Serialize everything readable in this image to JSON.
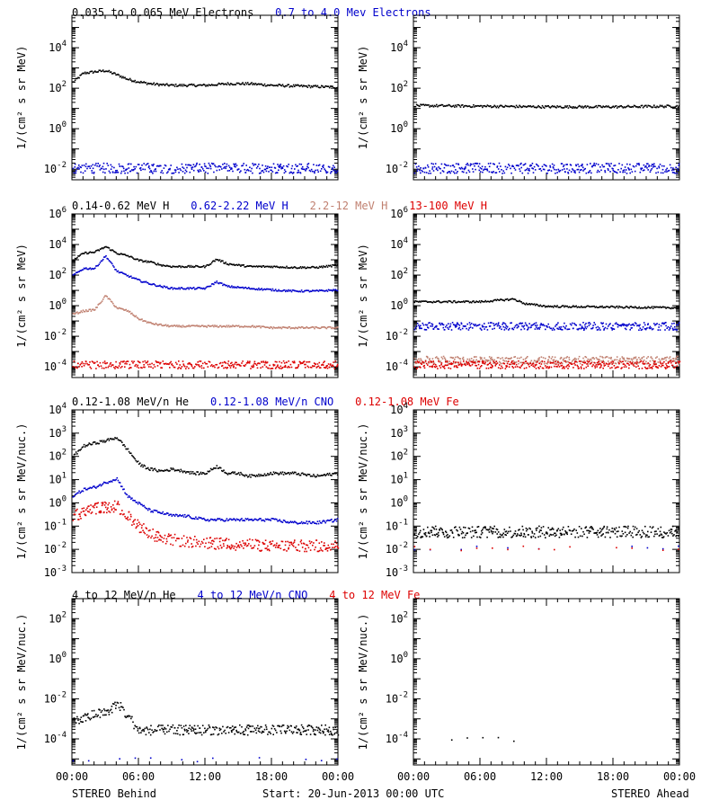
{
  "figure": {
    "footer_left": "STEREO Behind",
    "footer_center": "Start: 20-Jun-2013 00:00 UTC",
    "footer_right": "STEREO Ahead",
    "x_ticks": [
      "00:00",
      "06:00",
      "12:00",
      "18:00",
      "00:00"
    ]
  },
  "chart_data": [
    {
      "type": "scatter",
      "panel": "electrons",
      "title_entries": [
        {
          "text": "0.035 to 0.065 MeV Electrons",
          "color": "#000000"
        },
        {
          "text": "0.7 to 4.0 Mev Electrons",
          "color": "#0000cc"
        }
      ],
      "ylabel": "1/(cm² s sr MeV)",
      "y_scale": "log",
      "ylim": [
        0.003,
        400000
      ],
      "y_ticks": [
        {
          "base": "10",
          "exp": "-2",
          "value": 0.01
        },
        {
          "base": "10",
          "exp": "0",
          "value": 1
        },
        {
          "base": "10",
          "exp": "2",
          "value": 100
        },
        {
          "base": "10",
          "exp": "4",
          "value": 10000
        },
        {
          "base": "10",
          "exp": "6",
          "value": 1000000
        }
      ],
      "xlim_hours": [
        0,
        24
      ],
      "behind": [
        {
          "name": "0.035 to 0.065 MeV Electrons",
          "color": "#000000",
          "style": "line",
          "x": [
            0,
            1,
            2,
            3,
            4,
            5,
            6,
            7,
            8,
            9,
            10,
            12,
            14,
            16,
            18,
            20,
            22,
            24
          ],
          "y": [
            200,
            600,
            700,
            800,
            500,
            300,
            220,
            180,
            160,
            150,
            150,
            150,
            180,
            180,
            150,
            140,
            130,
            120
          ]
        },
        {
          "name": "0.7 to 4.0 Mev Electrons",
          "color": "#0000cc",
          "style": "noisy",
          "x": [
            0,
            24
          ],
          "y": [
            0.012,
            0.012
          ]
        }
      ],
      "ahead": [
        {
          "name": "0.035 to 0.065 MeV Electrons",
          "color": "#000000",
          "style": "line",
          "x": [
            0,
            6,
            12,
            18,
            24
          ],
          "y": [
            15,
            14,
            13,
            13,
            14
          ]
        },
        {
          "name": "0.7 to 4.0 Mev Electrons",
          "color": "#0000cc",
          "style": "noisy",
          "x": [
            0,
            24
          ],
          "y": [
            0.012,
            0.012
          ]
        }
      ]
    },
    {
      "type": "scatter",
      "panel": "protons",
      "title_entries": [
        {
          "text": "0.14-0.62 MeV H",
          "color": "#000000"
        },
        {
          "text": "0.62-2.22 MeV H",
          "color": "#0000cc"
        },
        {
          "text": "2.2-12 MeV H",
          "color": "#c08070"
        },
        {
          "text": "13-100 MeV H",
          "color": "#dd0000"
        }
      ],
      "ylabel": "1/(cm² s sr MeV)",
      "y_scale": "log",
      "ylim": [
        2e-05,
        1000000
      ],
      "y_ticks": [
        {
          "base": "10",
          "exp": "-4",
          "value": 0.0001
        },
        {
          "base": "10",
          "exp": "-2",
          "value": 0.01
        },
        {
          "base": "10",
          "exp": "0",
          "value": 1
        },
        {
          "base": "10",
          "exp": "2",
          "value": 100
        },
        {
          "base": "10",
          "exp": "4",
          "value": 10000
        },
        {
          "base": "10",
          "exp": "6",
          "value": 1000000
        }
      ],
      "xlim_hours": [
        0,
        24
      ],
      "behind": [
        {
          "name": "0.14-0.62 MeV H",
          "color": "#000000",
          "style": "line",
          "x": [
            0,
            1,
            2,
            3,
            4,
            5,
            6,
            7,
            8,
            9,
            10,
            12,
            13,
            14,
            16,
            18,
            20,
            22,
            24
          ],
          "y": [
            1000,
            3000,
            3500,
            8000,
            3000,
            2000,
            1000,
            800,
            500,
            400,
            400,
            400,
            1200,
            600,
            400,
            400,
            350,
            350,
            500
          ]
        },
        {
          "name": "0.62-2.22 MeV H",
          "color": "#0000cc",
          "style": "line",
          "x": [
            0,
            1,
            2,
            3,
            4,
            5,
            6,
            7,
            8,
            9,
            10,
            12,
            13,
            14,
            16,
            18,
            20,
            22,
            24
          ],
          "y": [
            100,
            300,
            300,
            2000,
            200,
            100,
            50,
            30,
            20,
            15,
            15,
            15,
            40,
            20,
            15,
            12,
            10,
            10,
            12
          ]
        },
        {
          "name": "2.2-12 MeV H",
          "color": "#c08070",
          "style": "line",
          "x": [
            0,
            1,
            2,
            3,
            4,
            5,
            6,
            7,
            8,
            9,
            10,
            12,
            14,
            16,
            18,
            20,
            22,
            24
          ],
          "y": [
            0.3,
            0.5,
            0.6,
            5,
            0.8,
            0.5,
            0.15,
            0.08,
            0.06,
            0.05,
            0.05,
            0.05,
            0.05,
            0.05,
            0.04,
            0.04,
            0.04,
            0.04
          ]
        },
        {
          "name": "13-100 MeV H",
          "color": "#dd0000",
          "style": "noisy",
          "x": [
            0,
            24
          ],
          "y": [
            0.00015,
            0.00015
          ]
        }
      ],
      "ahead": [
        {
          "name": "0.14-0.62 MeV H",
          "color": "#000000",
          "style": "line",
          "x": [
            0,
            3,
            6,
            9,
            10,
            12,
            18,
            24
          ],
          "y": [
            2,
            2,
            2,
            3,
            1.5,
            1,
            0.9,
            0.8
          ]
        },
        {
          "name": "0.62-2.22 MeV H",
          "color": "#0000cc",
          "style": "noisy",
          "x": [
            0,
            24
          ],
          "y": [
            0.05,
            0.05
          ]
        },
        {
          "name": "2.2-12 MeV H",
          "color": "#c08070",
          "style": "noisy",
          "x": [
            0,
            24
          ],
          "y": [
            0.0003,
            0.0003
          ]
        },
        {
          "name": "13-100 MeV H",
          "color": "#dd0000",
          "style": "noisy",
          "x": [
            0,
            24
          ],
          "y": [
            0.00015,
            0.00015
          ]
        }
      ]
    },
    {
      "type": "scatter",
      "panel": "low-energy-ions",
      "title_entries": [
        {
          "text": "0.12-1.08 MeV/n He",
          "color": "#000000"
        },
        {
          "text": "0.12-1.08 MeV/n CNO",
          "color": "#0000cc"
        },
        {
          "text": "0.12-1.08 MeV Fe",
          "color": "#dd0000"
        }
      ],
      "ylabel": "1/(cm² s sr MeV/nuc.)",
      "y_scale": "log",
      "ylim": [
        0.001,
        10000
      ],
      "y_ticks": [
        {
          "base": "10",
          "exp": "-3",
          "value": 0.001
        },
        {
          "base": "10",
          "exp": "-2",
          "value": 0.01
        },
        {
          "base": "10",
          "exp": "-1",
          "value": 0.1
        },
        {
          "base": "10",
          "exp": "0",
          "value": 1
        },
        {
          "base": "10",
          "exp": "1",
          "value": 10
        },
        {
          "base": "10",
          "exp": "2",
          "value": 100
        },
        {
          "base": "10",
          "exp": "3",
          "value": 1000
        },
        {
          "base": "10",
          "exp": "4",
          "value": 10000
        }
      ],
      "xlim_hours": [
        0,
        24
      ],
      "behind": [
        {
          "name": "0.12-1.08 MeV/n He",
          "color": "#000000",
          "style": "line",
          "x": [
            0,
            1,
            2,
            3,
            4,
            5,
            6,
            7,
            8,
            9,
            10,
            11,
            12,
            13,
            14,
            15,
            16,
            18,
            20,
            22,
            24
          ],
          "y": [
            100,
            300,
            400,
            500,
            700,
            200,
            50,
            30,
            25,
            30,
            25,
            20,
            20,
            40,
            20,
            20,
            15,
            20,
            20,
            15,
            20
          ]
        },
        {
          "name": "0.12-1.08 MeV/n CNO",
          "color": "#0000cc",
          "style": "line",
          "x": [
            0,
            1,
            2,
            3,
            4,
            5,
            6,
            7,
            8,
            9,
            10,
            12,
            14,
            16,
            18,
            20,
            22,
            24
          ],
          "y": [
            2,
            4,
            5,
            8,
            12,
            2,
            1,
            0.5,
            0.4,
            0.3,
            0.3,
            0.2,
            0.2,
            0.2,
            0.2,
            0.15,
            0.15,
            0.2
          ]
        },
        {
          "name": "0.12-1.08 MeV Fe",
          "color": "#dd0000",
          "style": "noisy",
          "x": [
            0,
            2,
            4,
            6,
            8,
            12,
            18,
            24
          ],
          "y": [
            0.3,
            0.6,
            0.8,
            0.1,
            0.03,
            0.02,
            0.015,
            0.015
          ]
        }
      ],
      "ahead": [
        {
          "name": "0.12-1.08 MeV/n He",
          "color": "#000000",
          "style": "noisy",
          "x": [
            0,
            24
          ],
          "y": [
            0.06,
            0.06
          ]
        },
        {
          "name": "0.12-1.08 MeV/n CNO",
          "color": "#0000cc",
          "style": "sparse",
          "x": [
            0,
            24
          ],
          "y": [
            0.012,
            0.012
          ]
        },
        {
          "name": "0.12-1.08 MeV Fe",
          "color": "#dd0000",
          "style": "sparse",
          "x": [
            0,
            24
          ],
          "y": [
            0.012,
            0.012
          ]
        }
      ]
    },
    {
      "type": "scatter",
      "panel": "high-energy-ions",
      "title_entries": [
        {
          "text": "4 to 12 MeV/n He",
          "color": "#000000"
        },
        {
          "text": "4 to 12 MeV/n CNO",
          "color": "#0000cc"
        },
        {
          "text": "4 to 12 MeV Fe",
          "color": "#dd0000"
        }
      ],
      "ylabel": "1/(cm² s sr MeV/nuc.)",
      "y_scale": "log",
      "ylim": [
        5e-06,
        1000
      ],
      "y_ticks": [
        {
          "base": "10",
          "exp": "-4",
          "value": 0.0001
        },
        {
          "base": "10",
          "exp": "-2",
          "value": 0.01
        },
        {
          "base": "10",
          "exp": "0",
          "value": 1
        },
        {
          "base": "10",
          "exp": "2",
          "value": 100
        }
      ],
      "xlim_hours": [
        0,
        24
      ],
      "behind": [
        {
          "name": "4 to 12 MeV/n He",
          "color": "#000000",
          "style": "noisy",
          "x": [
            0,
            1,
            2,
            3,
            4,
            5,
            6,
            8,
            12,
            16,
            20,
            24
          ],
          "y": [
            0.0008,
            0.001,
            0.002,
            0.002,
            0.006,
            0.0015,
            0.0003,
            0.0003,
            0.0003,
            0.0003,
            0.0003,
            0.0003
          ]
        },
        {
          "name": "4 to 12 MeV/n CNO",
          "color": "#0000cc",
          "style": "sparse",
          "x": [
            0,
            24
          ],
          "y": [
            1e-05,
            1e-05
          ]
        }
      ],
      "ahead": [
        {
          "name": "4 to 12 MeV/n He",
          "color": "#000000",
          "style": "sparse",
          "x": [
            2,
            10
          ],
          "y": [
            0.0001,
            0.0001
          ]
        }
      ]
    }
  ]
}
